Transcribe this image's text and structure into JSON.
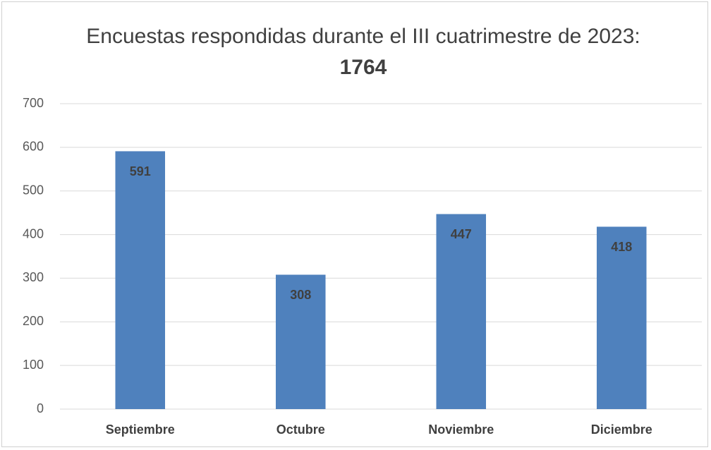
{
  "chart_data": {
    "type": "bar",
    "title": "Encuestas respondidas durante el III cuatrimestre de 2023:",
    "total": 1764,
    "categories": [
      "Septiembre",
      "Octubre",
      "Noviembre",
      "Diciembre"
    ],
    "values": [
      591,
      308,
      447,
      418
    ],
    "color": "#4f81bd",
    "ylim": [
      0,
      700
    ],
    "yticks": [
      0,
      100,
      200,
      300,
      400,
      500,
      600,
      700
    ],
    "grid": true
  }
}
